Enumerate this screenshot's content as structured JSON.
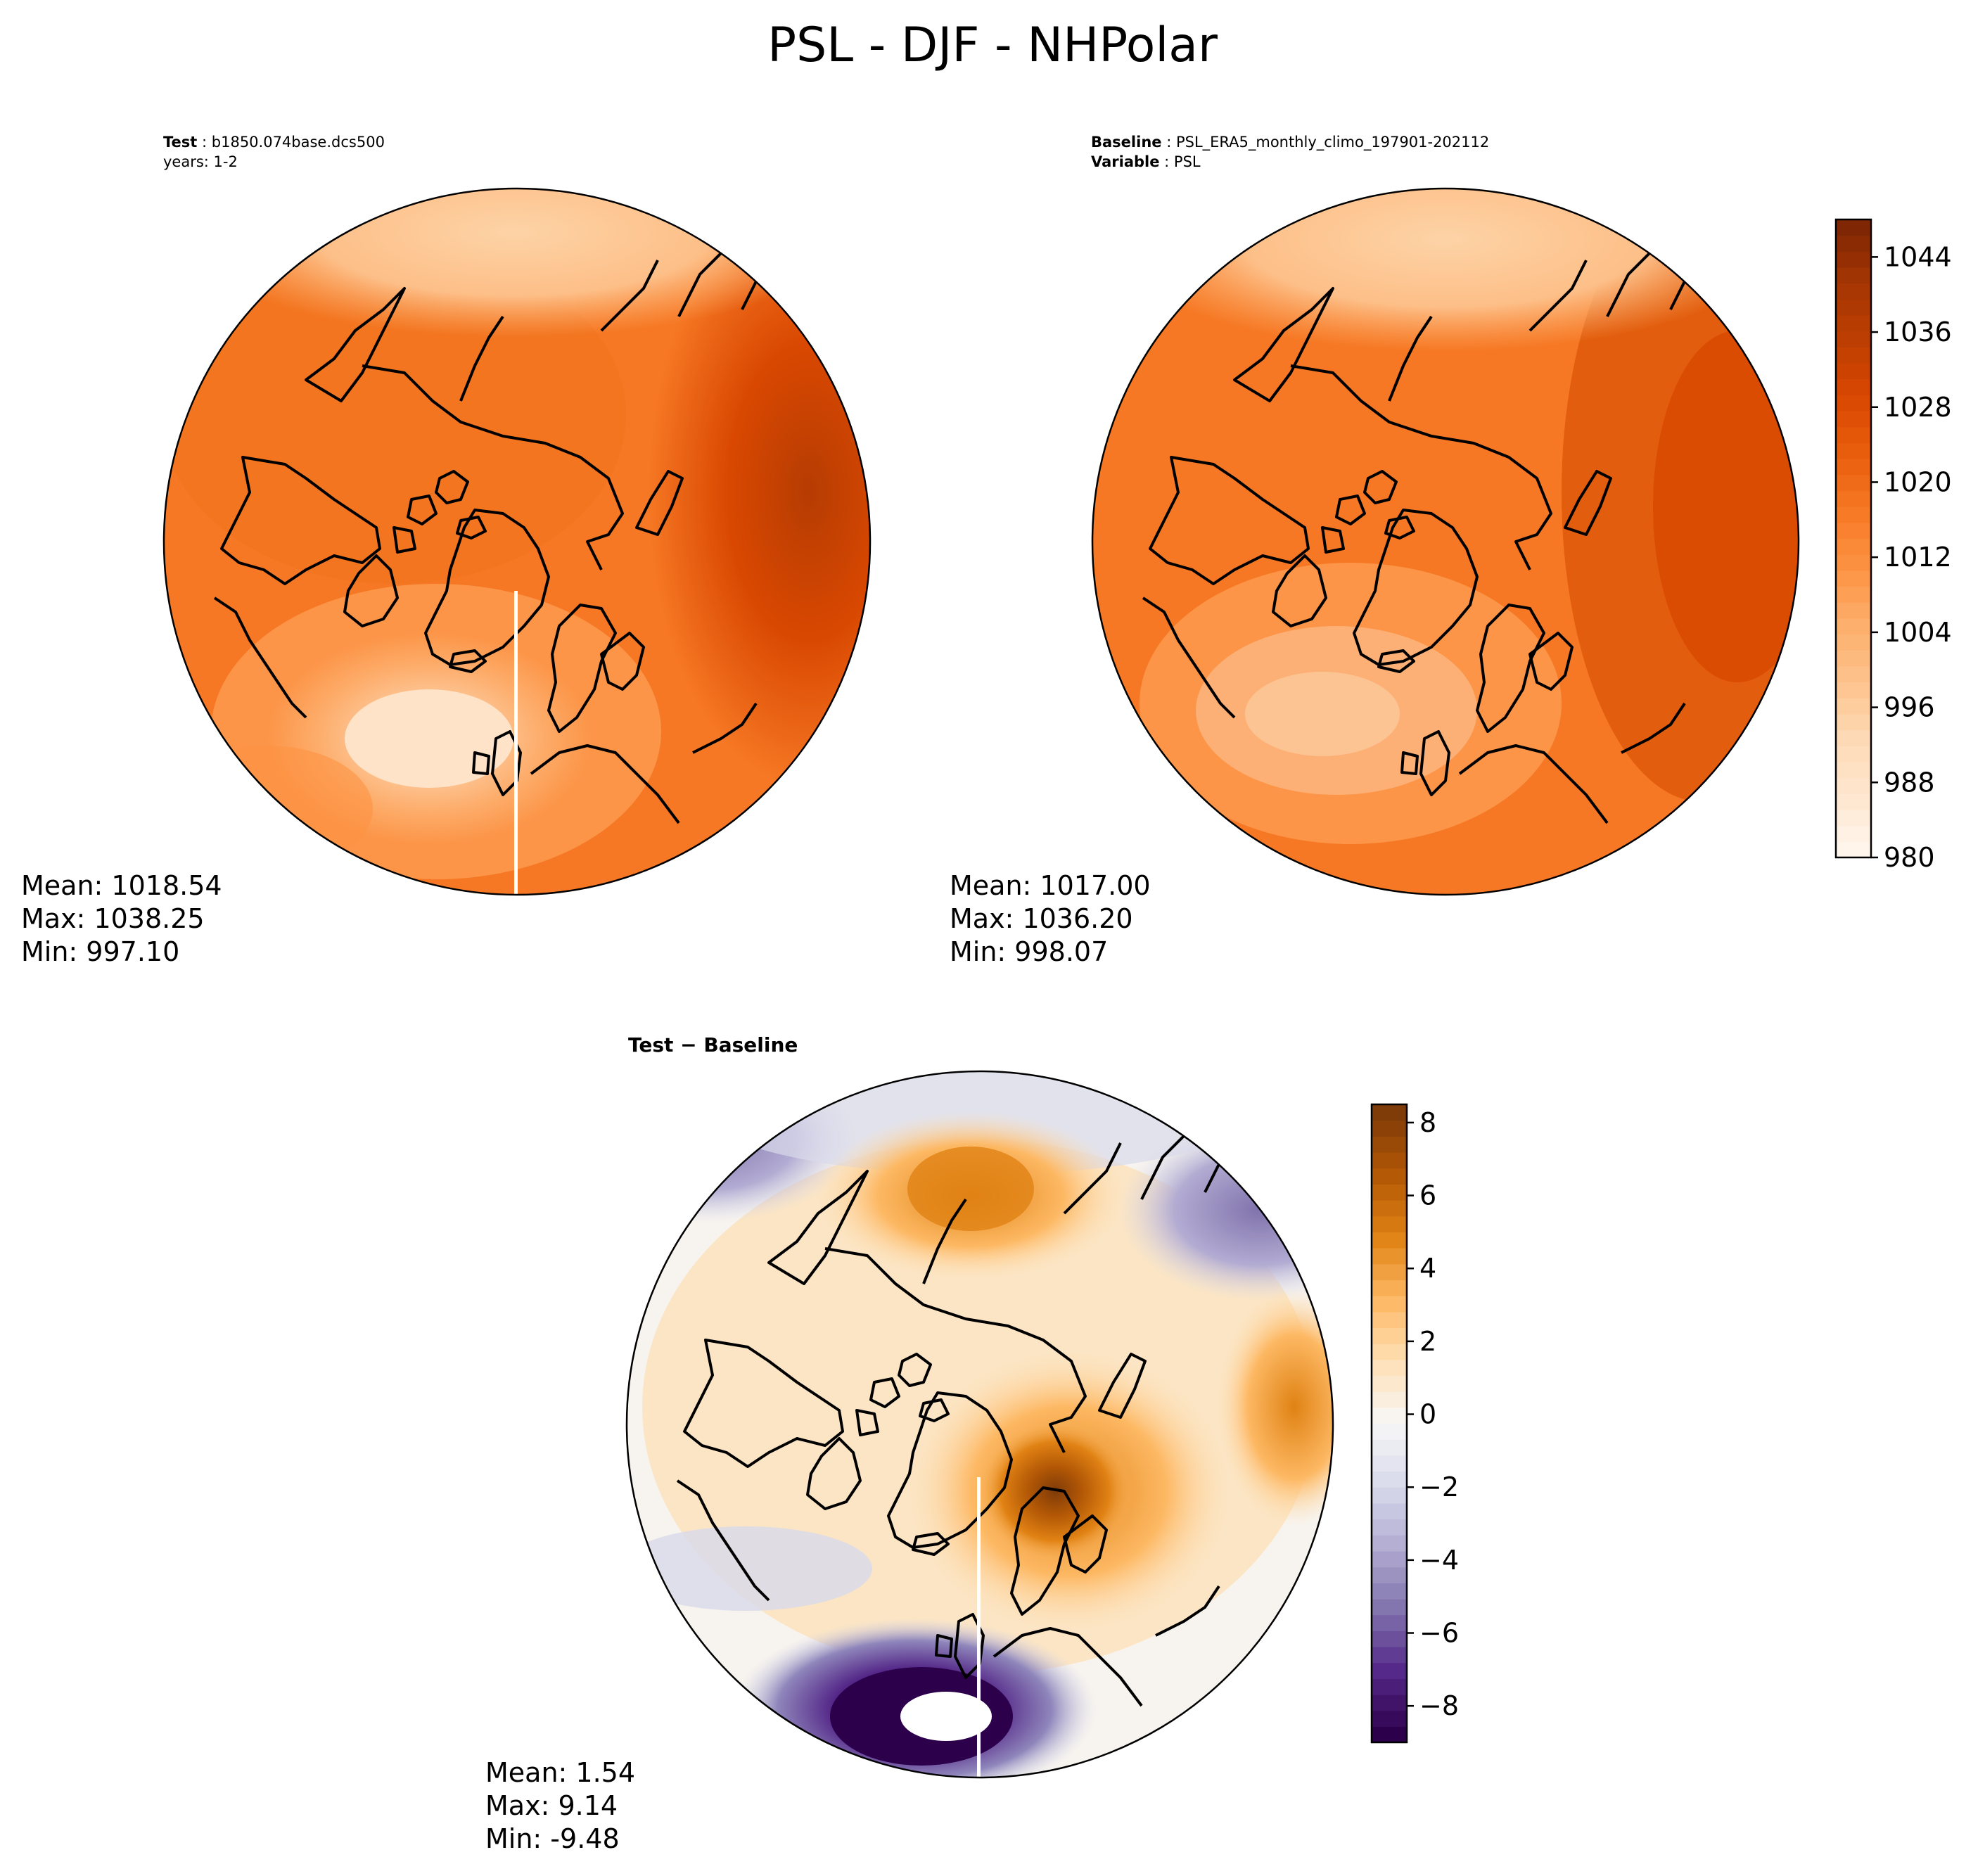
{
  "figure": {
    "title": "PSL - DJF - NHPolar"
  },
  "panels": {
    "test": {
      "label": "Test",
      "sep": " : ",
      "case": "b1850.074base.dcs500",
      "years": "years: 1-2",
      "stats": {
        "mean": "Mean: 1018.54",
        "max": "Max: 1038.25",
        "min": "Min: 997.10"
      }
    },
    "baseline": {
      "label": "Baseline",
      "sep": " : ",
      "case": "PSL_ERA5_monthly_climo_197901-202112",
      "variable_label": "Variable",
      "variable": "PSL",
      "stats": {
        "mean": "Mean: 1017.00",
        "max": "Max: 1036.20",
        "min": "Min: 998.07"
      }
    },
    "diff": {
      "title": "Test − Baseline",
      "stats": {
        "mean": "Mean:  1.54",
        "max": "Max:  9.14",
        "min": "Min: -9.48"
      }
    }
  },
  "colorbars": {
    "psl": {
      "colormap": "Oranges",
      "range": [
        980,
        1048
      ],
      "ticks": [
        "980",
        "988",
        "996",
        "1004",
        "1012",
        "1020",
        "1028",
        "1036",
        "1044"
      ],
      "colors": [
        "#fff5eb",
        "#fee6ce",
        "#fdd9b4",
        "#fdc28c",
        "#fdae6b",
        "#fd9243",
        "#f67824",
        "#e95e0d",
        "#d94801",
        "#bd3e02",
        "#a63603",
        "#7f2704"
      ]
    },
    "diff": {
      "colormap": "PuOr",
      "range": [
        -9,
        8.5
      ],
      "ticks": [
        "−8",
        "−6",
        "−4",
        "−2",
        "0",
        "2",
        "4",
        "6",
        "8"
      ],
      "colors": [
        "#2d004b",
        "#542788",
        "#8073ac",
        "#b2abd2",
        "#d8daeb",
        "#f7f7f7",
        "#fee0b6",
        "#fdb863",
        "#e08214",
        "#b35806",
        "#7f3b08"
      ]
    }
  }
}
